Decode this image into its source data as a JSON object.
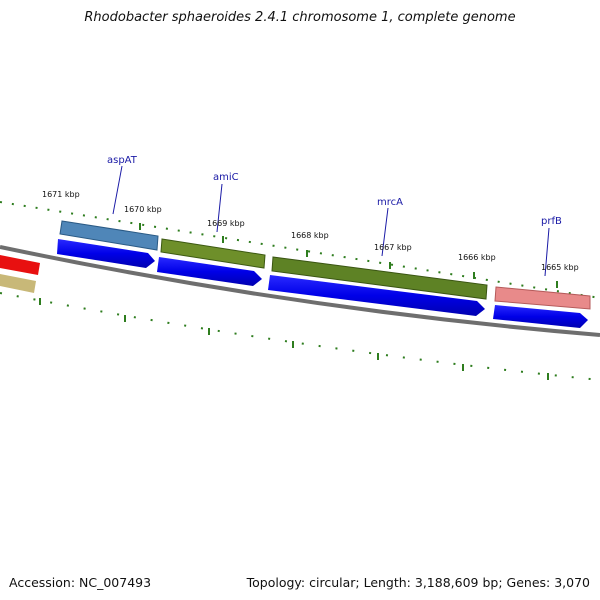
{
  "title": "Rhodobacter sphaeroides 2.4.1 chromosome 1, complete genome",
  "footer": {
    "accession": "Accession: NC_007493",
    "summary": "Topology: circular; Length: 3,188,609 bp; Genes: 3,070"
  },
  "position_labels": [
    "1671 kbp",
    "1670 kbp",
    "1669 kbp",
    "1668 kbp",
    "1667 kbp",
    "1666 kbp",
    "1665 kbp"
  ],
  "gene_labels": [
    "aspAT",
    "amiC",
    "mrcA",
    "prfB"
  ],
  "colors": {
    "backbone": "#7a7a7a",
    "ticks": "#2e7d1e",
    "cds": "#0a0af0",
    "aspAT": "#4f86b8",
    "amiC": "#6e8f2a",
    "mrcA": "#5e8225",
    "prfB": "#e88a8a",
    "red_gene": "#e81010",
    "tan_gene": "#c8b878",
    "label_text": "#1a1aa6"
  }
}
